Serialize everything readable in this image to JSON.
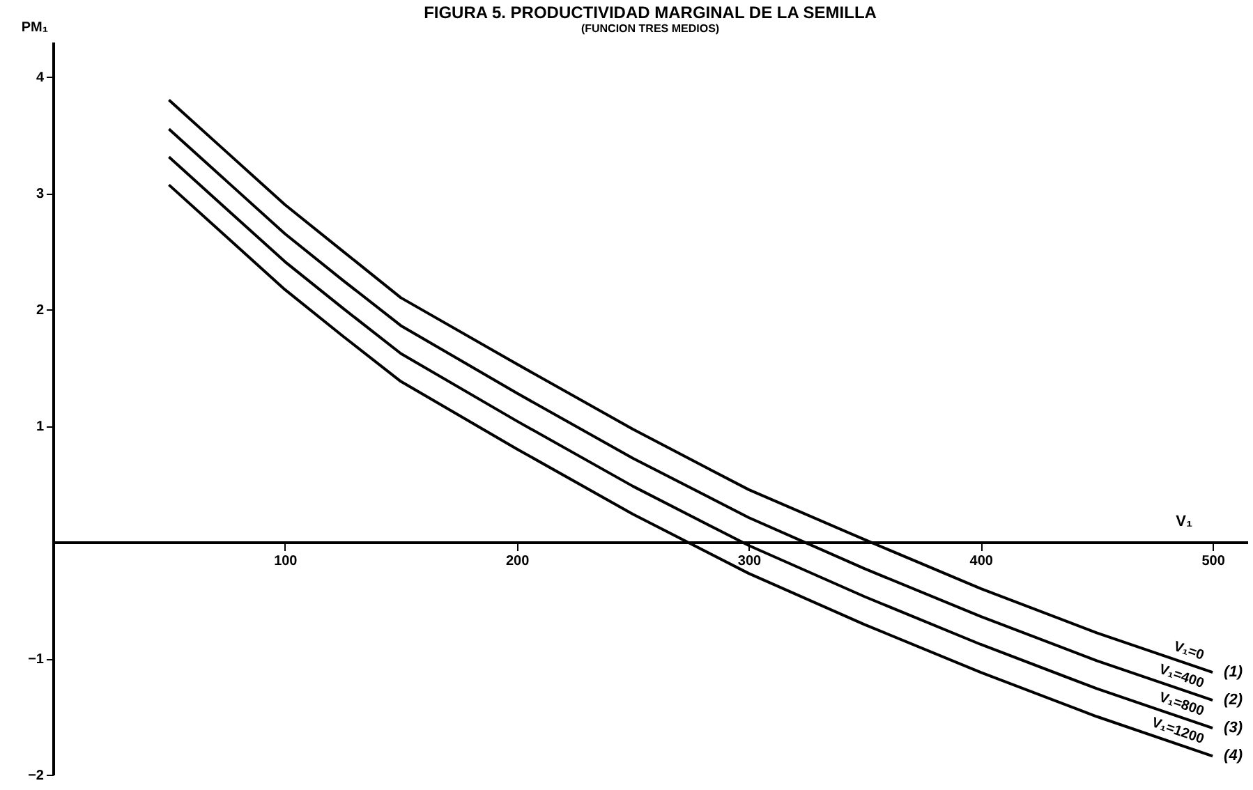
{
  "chart_data": {
    "type": "line",
    "title": "FIGURA 5. PRODUCTIVIDAD MARGINAL DE LA SEMILLA",
    "subtitle": "(FUNCION TRES MEDIOS)",
    "xlabel": "V₁",
    "ylabel": "PM₁",
    "x": [
      50,
      75,
      100,
      125,
      150,
      200,
      250,
      300,
      350,
      400,
      450,
      500
    ],
    "series": [
      {
        "name": "V₁=0",
        "color": "#000000",
        "values": [
          3.8,
          3.35,
          2.9,
          2.5,
          2.1,
          1.53,
          0.97,
          0.45,
          0.02,
          -0.4,
          -0.78,
          -1.12
        ]
      },
      {
        "name": "V₁=400",
        "color": "#000000",
        "values": [
          3.55,
          3.1,
          2.65,
          2.25,
          1.86,
          1.28,
          0.72,
          0.21,
          -0.23,
          -0.64,
          -1.02,
          -1.36
        ]
      },
      {
        "name": "V₁=800",
        "color": "#000000",
        "values": [
          3.31,
          2.86,
          2.41,
          2.01,
          1.62,
          1.04,
          0.48,
          -0.03,
          -0.47,
          -0.88,
          -1.26,
          -1.6
        ]
      },
      {
        "name": "V₁=1200",
        "color": "#000000",
        "values": [
          3.07,
          2.62,
          2.17,
          1.77,
          1.38,
          0.8,
          0.24,
          -0.27,
          -0.71,
          -1.12,
          -1.5,
          -1.84
        ]
      }
    ],
    "annotations": [
      "(1)",
      "(2)",
      "(3)",
      "(4)"
    ],
    "xlim": [
      0,
      515
    ],
    "ylim": [
      -2,
      4.3
    ],
    "xticks": [
      100,
      200,
      300,
      400,
      500
    ],
    "yticks": [
      -2,
      -1,
      1,
      2,
      3,
      4
    ],
    "grid": false,
    "legend": false
  }
}
